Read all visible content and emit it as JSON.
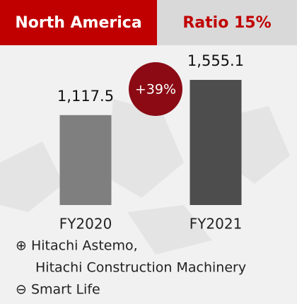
{
  "chart_data": {
    "type": "bar",
    "title": "North America",
    "subtitle": "Ratio 15%",
    "categories": [
      "FY2020",
      "FY2021"
    ],
    "values": [
      1117.5,
      1555.1
    ],
    "value_labels": [
      "1,117.5",
      "1,555.1"
    ],
    "colors": [
      "#7f7f7f",
      "#4d4d4d"
    ],
    "annotation": "+39%",
    "notes": [
      "⊕ Hitachi Astemo,",
      "Hitachi Construction Machinery",
      "⊖ Smart Life"
    ]
  }
}
